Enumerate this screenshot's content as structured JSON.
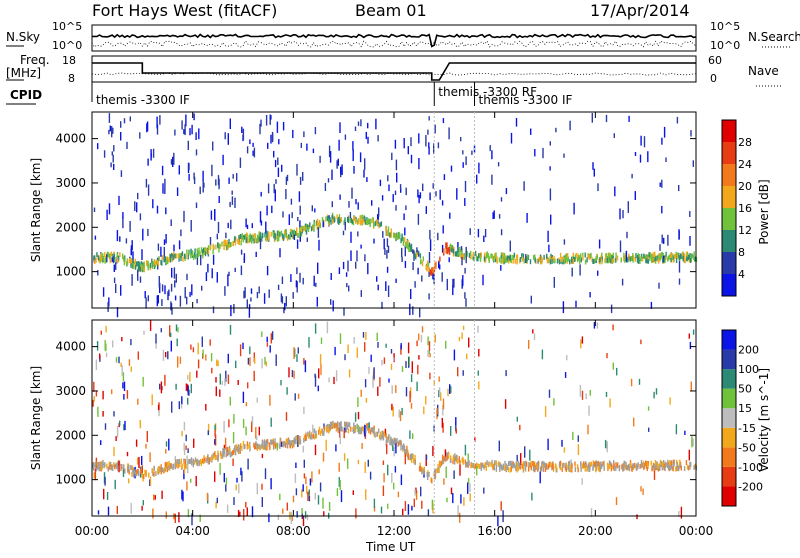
{
  "header": {
    "station": "Fort Hays West (fitACF)",
    "beam": "Beam 01",
    "date": "17/Apr/2014"
  },
  "noise_panel": {
    "left_label": "N.Sky",
    "right_label": "N.Search",
    "left_ticks": [
      "10^5",
      "10^0"
    ],
    "right_ticks": [
      "10^5",
      "10^0"
    ]
  },
  "freq_panel": {
    "left_label_line1": "Freq.",
    "left_label_line2": "[MHz]",
    "right_label": "Nave",
    "left_ticks": [
      "18",
      "8"
    ],
    "right_ticks": [
      "60",
      "0"
    ]
  },
  "cpid_panel": {
    "label": "CPID",
    "segments": [
      {
        "label": "themis -3300 IF",
        "start_hour": 0.0,
        "end_hour": 13.6
      },
      {
        "label": "themis -3300 RF",
        "start_hour": 13.6,
        "end_hour": 15.2
      },
      {
        "label": "themis -3300 IF",
        "start_hour": 15.2,
        "end_hour": 24.0
      }
    ]
  },
  "colors": {
    "power_scale": [
      "#0a14e6",
      "#2a3aa8",
      "#2c8a74",
      "#6fc23a",
      "#f2a81c",
      "#f27a1c",
      "#e83c14",
      "#e00000"
    ],
    "velocity_scale": [
      "#0a14e6",
      "#2a3aa8",
      "#2c8a74",
      "#6fc23a",
      "#bdbdbd",
      "#f2a81c",
      "#f27a1c",
      "#e83c14",
      "#e00000"
    ],
    "ground_scatter": "#9e9e9e"
  },
  "chart_data": [
    {
      "type": "heatmap",
      "panel": "power",
      "xlabel": "Time UT",
      "ylabel": "Slant Range [km]",
      "x_ticks": [
        "00:00",
        "04:00",
        "08:00",
        "12:00",
        "16:00",
        "20:00",
        "00:00"
      ],
      "x_tick_hours": [
        0,
        4,
        8,
        12,
        16,
        20,
        24
      ],
      "xlim": [
        0,
        24
      ],
      "y_ticks": [
        1000,
        2000,
        3000,
        4000
      ],
      "ylim": [
        180,
        4600
      ],
      "colorbar": {
        "label": "Power [dB]",
        "ticks": [
          4,
          8,
          12,
          16,
          20,
          24,
          28
        ],
        "range": [
          0,
          30
        ]
      },
      "band_center_km": [
        [
          0.0,
          1360
        ],
        [
          1.0,
          1380
        ],
        [
          2.0,
          1150
        ],
        [
          3.0,
          1350
        ],
        [
          4.5,
          1500
        ],
        [
          6.0,
          1800
        ],
        [
          8.0,
          1900
        ],
        [
          9.5,
          2250
        ],
        [
          11.0,
          2200
        ],
        [
          12.3,
          1800
        ],
        [
          13.5,
          1050
        ],
        [
          14.0,
          1600
        ],
        [
          15.0,
          1400
        ],
        [
          16.5,
          1350
        ],
        [
          19.0,
          1350
        ],
        [
          24.0,
          1380
        ]
      ]
    },
    {
      "type": "heatmap",
      "panel": "velocity",
      "xlabel": "Time UT",
      "ylabel": "Slant Range [km]",
      "x_ticks": [
        "00:00",
        "04:00",
        "08:00",
        "12:00",
        "16:00",
        "20:00",
        "00:00"
      ],
      "x_tick_hours": [
        0,
        4,
        8,
        12,
        16,
        20,
        24
      ],
      "xlim": [
        0,
        24
      ],
      "y_ticks": [
        1000,
        2000,
        3000,
        4000
      ],
      "ylim": [
        180,
        4600
      ],
      "colorbar": {
        "label": "Velocity [m s^-1]",
        "ticks": [
          200,
          100,
          50,
          15,
          -15,
          -50,
          -100,
          -200
        ],
        "range": [
          -250,
          250
        ]
      }
    }
  ]
}
